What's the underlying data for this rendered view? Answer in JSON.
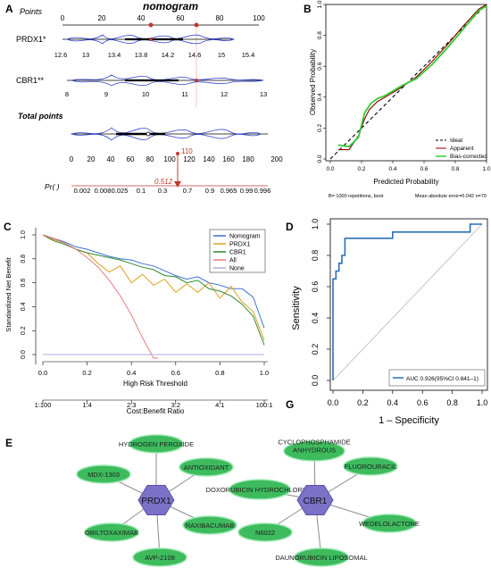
{
  "panel_labels": {
    "a": "A",
    "b": "B",
    "c": "C",
    "d": "D",
    "g": "G",
    "e": "E"
  },
  "nomogram": {
    "title": "nomogram",
    "points_label": "Points",
    "points_ticks": [
      "0",
      "20",
      "40",
      "60",
      "80",
      "100"
    ],
    "prdx1_label": "PRDX1*",
    "prdx1_ticks": [
      "12.6",
      "13",
      "13.4",
      "13.8",
      "14.2",
      "14.6",
      "15",
      "15.4"
    ],
    "cbr1_label": "CBR1**",
    "cbr1_ticks": [
      "8",
      "9",
      "10",
      "11",
      "12",
      "13"
    ],
    "total_label": "Total points",
    "total_ticks": [
      "0",
      "20",
      "40",
      "60",
      "80",
      "100",
      "120",
      "140",
      "160",
      "180",
      "200"
    ],
    "total_value": "110",
    "pr_label": "Pr( )",
    "pr_value": "0.512",
    "pr_ticks": [
      "0.002",
      "0.008",
      "0.025",
      "0.1",
      "0.3",
      "0.7",
      "0.9",
      "0.965",
      "0.99",
      "0.996"
    ]
  },
  "chart_data": [
    {
      "type": "line",
      "panel": "B",
      "ylabel": "Observed Probability",
      "xlabel": "Predicted Probability",
      "xticks": [
        "0.0",
        "0.2",
        "0.4",
        "0.6",
        "0.8",
        "1.0"
      ],
      "yticks": [
        "0.0",
        "0.2",
        "0.4",
        "0.6",
        "0.8",
        "1.0"
      ],
      "xlim": [
        0,
        1
      ],
      "ylim": [
        0,
        1
      ],
      "legend": [
        "Ideal",
        "Apparent",
        "Bias-corrected"
      ],
      "legend_position": "bottom-right",
      "footnote_left": "B= 1000 repetitions, boot",
      "footnote_right": "Mean absolute error=0.042 n=70",
      "series": [
        {
          "name": "Ideal",
          "color": "#000000",
          "dash": true,
          "x": [
            0,
            1
          ],
          "y": [
            0,
            1
          ]
        },
        {
          "name": "Apparent",
          "color": "#8b0000",
          "x": [
            0.05,
            0.12,
            0.18,
            0.22,
            0.25,
            0.3,
            0.35,
            0.45,
            0.55,
            0.65,
            0.75,
            0.85,
            0.95,
            1.0
          ],
          "y": [
            0.06,
            0.06,
            0.15,
            0.26,
            0.32,
            0.37,
            0.4,
            0.46,
            0.53,
            0.63,
            0.74,
            0.86,
            0.97,
            1.0
          ]
        },
        {
          "name": "Bias-corrected",
          "color": "#33cc33",
          "x": [
            0.05,
            0.12,
            0.18,
            0.22,
            0.26,
            0.3,
            0.35,
            0.45,
            0.55,
            0.65,
            0.75,
            0.85,
            0.95,
            1.0
          ],
          "y": [
            0.09,
            0.08,
            0.14,
            0.3,
            0.36,
            0.39,
            0.41,
            0.47,
            0.52,
            0.61,
            0.72,
            0.84,
            0.96,
            0.99
          ]
        }
      ]
    },
    {
      "type": "line",
      "panel": "C",
      "ylabel": "Standardized Net Benefit",
      "xlabel": "High Risk Threshold",
      "xlabel2": "Cost:Benefit Ratio",
      "xticks": [
        "0.0",
        "0.2",
        "0.4",
        "0.6",
        "0.8",
        "1.0"
      ],
      "xticks2": [
        "1:100",
        "1:4",
        "2:3",
        "3:2",
        "4:1",
        "100:1"
      ],
      "yticks": [
        "0.0",
        "0.2",
        "0.4",
        "0.6",
        "0.8",
        "1.0"
      ],
      "xlim": [
        0,
        1
      ],
      "ylim": [
        -0.05,
        1.05
      ],
      "legend_position": "top-right",
      "series": [
        {
          "name": "Nomogram",
          "color": "#3a73d4",
          "x": [
            0,
            0.05,
            0.1,
            0.15,
            0.2,
            0.25,
            0.3,
            0.35,
            0.4,
            0.45,
            0.5,
            0.55,
            0.6,
            0.65,
            0.7,
            0.75,
            0.8,
            0.85,
            0.9,
            0.95,
            1.0
          ],
          "y": [
            1,
            0.97,
            0.94,
            0.9,
            0.88,
            0.85,
            0.82,
            0.8,
            0.79,
            0.76,
            0.74,
            0.7,
            0.66,
            0.63,
            0.65,
            0.6,
            0.58,
            0.55,
            0.55,
            0.48,
            0.22
          ]
        },
        {
          "name": "PRDX1",
          "color": "#e0a020",
          "x": [
            0,
            0.05,
            0.1,
            0.15,
            0.2,
            0.25,
            0.3,
            0.35,
            0.4,
            0.45,
            0.5,
            0.55,
            0.6,
            0.65,
            0.7,
            0.75,
            0.8,
            0.85,
            0.9,
            0.95,
            1.0
          ],
          "y": [
            1,
            0.96,
            0.93,
            0.88,
            0.85,
            0.76,
            0.69,
            0.74,
            0.6,
            0.67,
            0.58,
            0.63,
            0.52,
            0.59,
            0.52,
            0.6,
            0.47,
            0.57,
            0.44,
            0.36,
            0.12
          ]
        },
        {
          "name": "CBR1",
          "color": "#2e8b2e",
          "x": [
            0,
            0.05,
            0.1,
            0.15,
            0.2,
            0.25,
            0.3,
            0.35,
            0.4,
            0.45,
            0.5,
            0.55,
            0.6,
            0.65,
            0.7,
            0.75,
            0.8,
            0.85,
            0.9,
            0.95,
            1.0
          ],
          "y": [
            1,
            0.95,
            0.92,
            0.88,
            0.85,
            0.83,
            0.81,
            0.79,
            0.76,
            0.73,
            0.71,
            0.66,
            0.65,
            0.6,
            0.62,
            0.55,
            0.53,
            0.49,
            0.42,
            0.32,
            0.08
          ]
        },
        {
          "name": "All",
          "color": "#e87d7d",
          "x": [
            0,
            0.05,
            0.1,
            0.15,
            0.2,
            0.25,
            0.3,
            0.35,
            0.4,
            0.45,
            0.5,
            0.52
          ],
          "y": [
            1,
            0.97,
            0.93,
            0.88,
            0.81,
            0.73,
            0.62,
            0.49,
            0.33,
            0.14,
            -0.05,
            -0.1
          ]
        },
        {
          "name": "None",
          "color": "#b5a4e0",
          "x": [
            0,
            1
          ],
          "y": [
            0,
            0
          ]
        }
      ]
    },
    {
      "type": "line",
      "panel": "D",
      "ylabel": "Sensitivity",
      "xlabel": "1 – Specificity",
      "xticks": [
        "0.0",
        "0.2",
        "0.4",
        "0.6",
        "0.8",
        "1.0"
      ],
      "yticks": [
        "0.0",
        "0.2",
        "0.4",
        "0.6",
        "0.8",
        "1.0"
      ],
      "xlim": [
        0,
        1
      ],
      "ylim": [
        0,
        1
      ],
      "legend": [
        "AUC 0.926(95%CI 0.841–1)"
      ],
      "legend_position": "bottom-right",
      "series": [
        {
          "name": "AUC 0.926(95%CI 0.841–1)",
          "color": "#2a6fb5",
          "x": [
            0,
            0,
            0.02,
            0.02,
            0.04,
            0.04,
            0.06,
            0.06,
            0.08,
            0.08,
            0.4,
            0.4,
            0.92,
            0.92,
            1.0
          ],
          "y": [
            0,
            0.65,
            0.65,
            0.7,
            0.7,
            0.75,
            0.75,
            0.8,
            0.8,
            0.91,
            0.91,
            0.95,
            0.95,
            1.0,
            1.0
          ]
        },
        {
          "name": "",
          "color": "#bbbbbb",
          "x": [
            0,
            1
          ],
          "y": [
            0,
            1
          ]
        }
      ]
    }
  ],
  "network": {
    "hubs": [
      {
        "label": "PRDX1"
      },
      {
        "label": "CBR1"
      }
    ],
    "prdx1_nodes": [
      "HYDROGEN PEROXIDE",
      "ANTIOXIDANT",
      "MDX-1303",
      "RAXIBACUMAB",
      "OBILTOXAXIMAB",
      "AVP-2109"
    ],
    "cbr1_nodes": [
      "CYCLOPHOSPHAMIDE\nANHYDROUS",
      "FLUOROURACIL",
      "DOXORUBICIN HYDROCHLORIDE",
      "WEDELOLACTONE",
      "N6022",
      "DAUNORUBICIN LIPOSOMAL"
    ],
    "hub_color": "#7b72c8",
    "node_color": "#3dbb5d"
  }
}
